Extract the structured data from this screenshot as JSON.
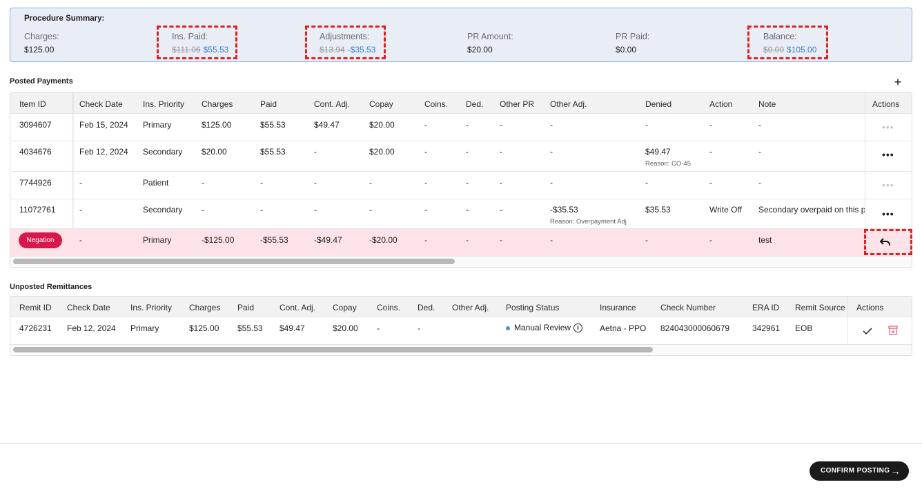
{
  "summary": {
    "title": "Procedure Summary:",
    "charges": {
      "label": "Charges:",
      "value": "$125.00"
    },
    "ins_paid": {
      "label": "Ins. Paid:",
      "old": "$111.06",
      "new": "$55.53"
    },
    "adjustments": {
      "label": "Adjustments:",
      "old": "$13.94",
      "new": "-$35.53"
    },
    "pr_amount": {
      "label": "PR Amount:",
      "value": "$20.00"
    },
    "pr_paid": {
      "label": "PR Paid:",
      "value": "$0.00"
    },
    "balance": {
      "label": "Balance:",
      "old": "$0.00",
      "new": "$105.00"
    }
  },
  "posted": {
    "title": "Posted Payments",
    "add_icon": "plus-icon",
    "headers": [
      "Item ID",
      "Check Date",
      "Ins. Priority",
      "Charges",
      "Paid",
      "Cont. Adj.",
      "Copay",
      "Coins.",
      "Ded.",
      "Other PR",
      "Other Adj.",
      "Denied",
      "Action",
      "Note",
      "Actions"
    ],
    "rows": [
      {
        "id": "3094607",
        "check_date": "Feb 15, 2024",
        "priority": "Primary",
        "charges": "$125.00",
        "paid": "$55.53",
        "cont_adj": "$49.47",
        "copay": "$20.00",
        "coins": "-",
        "ded": "-",
        "other_pr": "-",
        "other_adj": "-",
        "denied": "-",
        "action": "-",
        "note": "-"
      },
      {
        "id": "4034676",
        "check_date": "Feb 12, 2024",
        "priority": "Secondary",
        "charges": "$20.00",
        "paid": "$55.53",
        "cont_adj": "-",
        "copay": "$20.00",
        "coins": "-",
        "ded": "-",
        "other_pr": "-",
        "other_adj": "-",
        "denied": "$49.47",
        "denied_reason": "Reason: CO-45",
        "action": "-",
        "note": "-"
      },
      {
        "id": "7744926",
        "check_date": "-",
        "priority": "Patient",
        "charges": "-",
        "paid": "-",
        "cont_adj": "-",
        "copay": "-",
        "coins": "-",
        "ded": "-",
        "other_pr": "-",
        "other_adj": "-",
        "denied": "-",
        "action": "-",
        "note": "-"
      },
      {
        "id": "11072761",
        "check_date": "-",
        "priority": "Secondary",
        "charges": "-",
        "paid": "-",
        "cont_adj": "-",
        "copay": "-",
        "coins": "-",
        "ded": "-",
        "other_pr": "-",
        "other_adj": "-$35.53",
        "other_adj_reason": "Reason: Overpayment Adj",
        "denied": "$35.53",
        "action": "Write Off",
        "note": "Secondary overpaid on this pr"
      },
      {
        "badge": "Negation",
        "check_date": "-",
        "priority": "Primary",
        "charges": "-$125.00",
        "paid": "-$55.53",
        "cont_adj": "-$49.47",
        "copay": "-$20.00",
        "coins": "-",
        "ded": "-",
        "other_pr": "-",
        "other_adj": "-",
        "denied": "-",
        "action": "-",
        "note": "test"
      }
    ],
    "scrollbar_fraction": 0.49
  },
  "unposted": {
    "title": "Unposted Remittances",
    "headers": [
      "Remit ID",
      "Check Date",
      "Ins. Priority",
      "Charges",
      "Paid",
      "Cont. Adj.",
      "Copay",
      "Coins.",
      "Ded.",
      "Other Adj.",
      "Posting Status",
      "Insurance",
      "Check Number",
      "ERA ID",
      "Remit Source",
      "Actions"
    ],
    "rows": [
      {
        "id": "4726231",
        "check_date": "Feb 12, 2024",
        "priority": "Primary",
        "charges": "$125.00",
        "paid": "$55.53",
        "cont_adj": "$49.47",
        "copay": "$20.00",
        "coins": "-",
        "ded": "-",
        "other_adj": "",
        "status": "Manual Review",
        "insurance": "Aetna - PPO",
        "check_number": "824043000060679",
        "era_id": "342961",
        "source": "EOB"
      }
    ],
    "scrollbar_fraction": 0.71
  },
  "footer": {
    "confirm_label": "CONFIRM POSTING"
  },
  "colors": {
    "accent_blue": "#3b82d1",
    "negation_red": "#d7184a",
    "negation_row": "#fde3e8",
    "highlight_dash": "#e02020"
  }
}
